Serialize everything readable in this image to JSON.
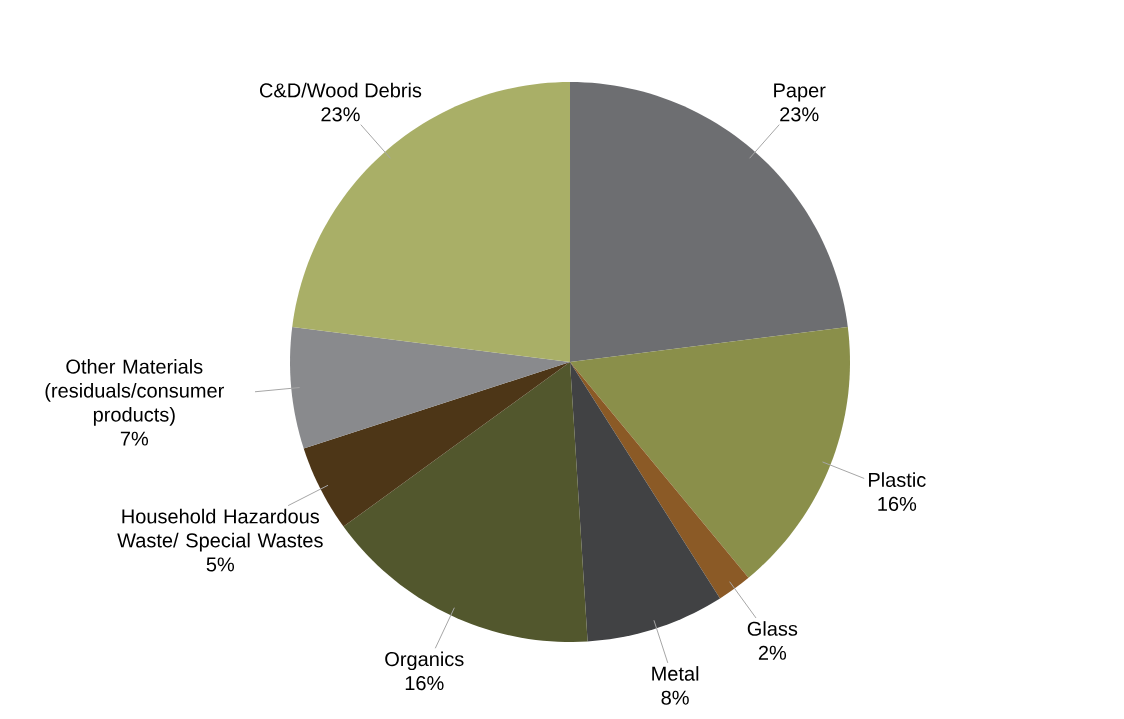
{
  "chart_data": {
    "type": "pie",
    "categories": [
      "Paper",
      "Plastic",
      "Glass",
      "Metal",
      "Organics",
      "Household Hazardous Waste/ Special Wastes",
      "Other Materials (residuals/consumer products)",
      "C&D/Wood Debris"
    ],
    "values": [
      23,
      16,
      2,
      8,
      16,
      5,
      7,
      23
    ],
    "value_labels": [
      "23%",
      "16%",
      "2%",
      "8%",
      "16%",
      "5%",
      "7%",
      "23%"
    ],
    "colors": [
      "#6d6e71",
      "#8a8f4a",
      "#8b5a26",
      "#414244",
      "#52572d",
      "#4d3617",
      "#898a8d",
      "#a9af67"
    ]
  }
}
